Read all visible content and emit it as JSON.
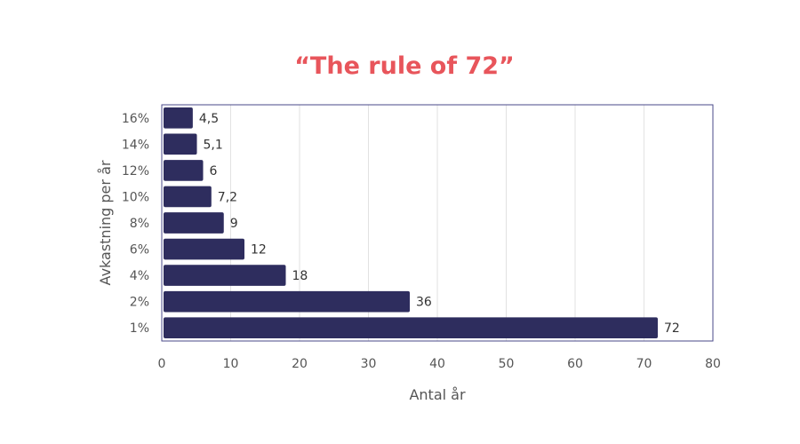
{
  "chart_data": {
    "type": "bar",
    "orientation": "horizontal",
    "title": "“The rule of 72”",
    "xlabel": "Antal år",
    "ylabel": "Avkastning per år",
    "categories": [
      "16%",
      "14%",
      "12%",
      "10%",
      "8%",
      "6%",
      "4%",
      "2%",
      "1%"
    ],
    "values": [
      4.5,
      5.1,
      6,
      7.2,
      9,
      12,
      18,
      36,
      72
    ],
    "data_labels": [
      "4,5",
      "5,1",
      "6",
      "7,2",
      "9",
      "12",
      "18",
      "36",
      "72"
    ],
    "xlim": [
      0,
      80
    ],
    "xticks": [
      0,
      10,
      20,
      30,
      40,
      50,
      60,
      70,
      80
    ],
    "xtick_labels": [
      "0",
      "10",
      "20",
      "30",
      "40",
      "50",
      "60",
      "70",
      "80"
    ],
    "grid": "vertical",
    "colors": {
      "bar": "#2e2d5e",
      "title": "#e8555b",
      "frame": "#4a4a8a",
      "grid": "#e2e2e2"
    }
  }
}
